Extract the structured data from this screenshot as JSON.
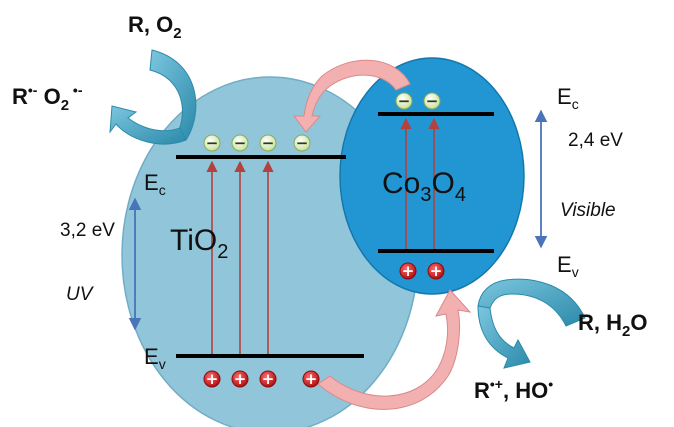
{
  "tio2": {
    "name": "TiO",
    "sub": "2",
    "ec": "E",
    "ec_sub": "c",
    "ev": "E",
    "ev_sub": "v",
    "gap": "3,2 eV",
    "light": "UV",
    "color": "#8cc3d9"
  },
  "co3o4": {
    "name": "Co",
    "sub1": "3",
    "o": "O",
    "sub2": "4",
    "ec": "E",
    "ec_sub": "c",
    "ev": "E",
    "ev_sub": "v",
    "gap": "2,4 eV",
    "light": "Visible",
    "color": "#2196d3"
  },
  "reactions": {
    "top_in": "R, O",
    "top_in_sub": "2",
    "top_out": "R",
    "top_out_sup": "•-",
    "top_out_o": " O",
    "top_out_sub": "2",
    "top_out_sup2": " •-",
    "bottom_in": "R, H",
    "bottom_in_sub": "2",
    "bottom_in_o": "O",
    "bottom_out": "R",
    "bottom_out_sup": "•+",
    "bottom_out_rest": ", HO",
    "bottom_out_sup2": "•"
  },
  "charges": {
    "electron": "−",
    "hole": "+"
  },
  "colors": {
    "electron_fill": "#e8f5c8",
    "hole_fill": "#d61e1e",
    "band_line": "#000000",
    "excitation_arrow": "#b3423f",
    "transfer_arrow": "#f3b0b0",
    "reaction_arrow": "#3aa1c0",
    "gap_arrow": "#4a74b8"
  }
}
